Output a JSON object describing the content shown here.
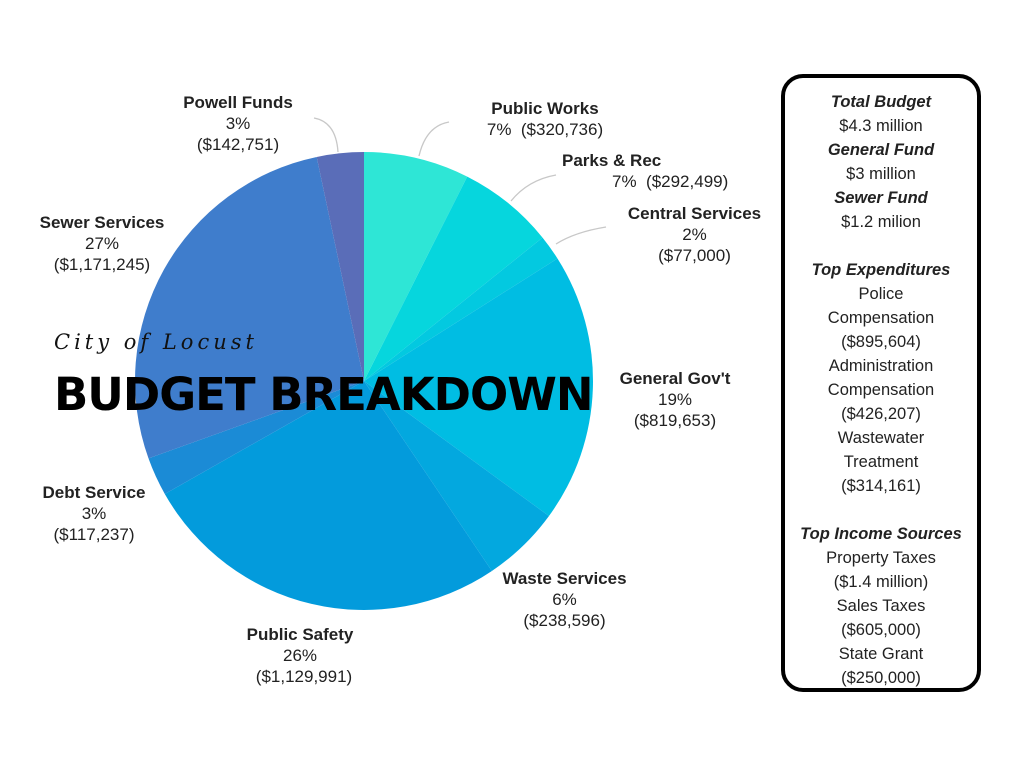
{
  "title": "BUDGET BREAKDOWN",
  "subtitle": "City of Locust",
  "chart_data": {
    "type": "pie",
    "slices": [
      {
        "name": "Public Works",
        "percent": "7%",
        "amount": "($320,736)",
        "value": 320736,
        "color": "#2ee6d6"
      },
      {
        "name": "Parks & Rec",
        "percent": "7%",
        "amount": "($292,499)",
        "value": 292499,
        "color": "#06d6dd"
      },
      {
        "name": "Central Services",
        "percent": "2%",
        "amount": "($77,000)",
        "value": 77000,
        "color": "#03c9e0"
      },
      {
        "name": "General Gov't",
        "percent": "19%",
        "amount": "($819,653)",
        "value": 819653,
        "color": "#00bde3"
      },
      {
        "name": "Waste Services",
        "percent": "6%",
        "amount": "($238,596)",
        "value": 238596,
        "color": "#03a8df"
      },
      {
        "name": "Public Safety",
        "percent": "26%",
        "amount": "($1,129,991)",
        "value": 1129991,
        "color": "#039bdc"
      },
      {
        "name": "Debt Service",
        "percent": "3%",
        "amount": "($117,237)",
        "value": 117237,
        "color": "#1b8bd6"
      },
      {
        "name": "Sewer Services",
        "percent": "27%",
        "amount": "($1,171,245)",
        "value": 1171245,
        "color": "#3f7dcc"
      },
      {
        "name": "Powell Funds",
        "percent": "3%",
        "amount": "($142,751)",
        "value": 142751,
        "color": "#5a6db8"
      }
    ]
  },
  "sidebar": {
    "total_budget_heading": "Total Budget",
    "total_budget_value": "$4.3 million",
    "general_fund_heading": "General Fund",
    "general_fund_value": "$3 million",
    "sewer_fund_heading": "Sewer Fund",
    "sewer_fund_value": "$1.2 milion",
    "top_expenditures_heading": "Top Expenditures",
    "expenditures": [
      {
        "line1": "Police",
        "line2": "Compensation",
        "amount": "($895,604)"
      },
      {
        "line1": "Administration",
        "line2": "Compensation",
        "amount": "($426,207)"
      },
      {
        "line1": "Wastewater",
        "line2": "Treatment",
        "amount": "($314,161)"
      }
    ],
    "top_income_heading": "Top Income Sources",
    "income": [
      {
        "name": "Property Taxes",
        "amount": "($1.4 million)"
      },
      {
        "name": "Sales Taxes",
        "amount": "($605,000)"
      },
      {
        "name": "State Grant",
        "amount": "($250,000)"
      }
    ]
  }
}
